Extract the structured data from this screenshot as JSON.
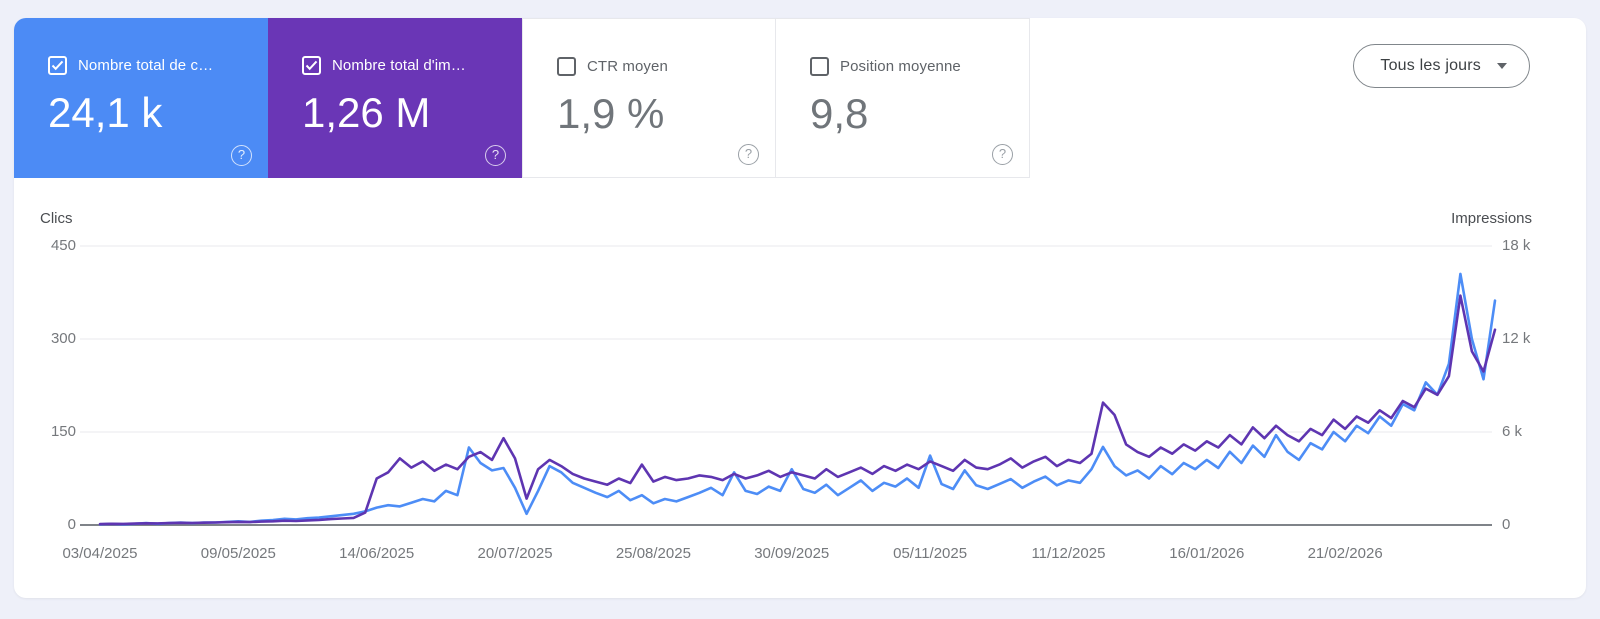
{
  "metrics": {
    "help_glyph": "?",
    "cards": [
      {
        "label": "Nombre total de c…",
        "value": "24,1 k",
        "checked": true
      },
      {
        "label": "Nombre total d'im…",
        "value": "1,26 M",
        "checked": true
      },
      {
        "label": "CTR moyen",
        "value": "1,9 %",
        "checked": false
      },
      {
        "label": "Position moyenne",
        "value": "9,8",
        "checked": false
      }
    ]
  },
  "date_filter": {
    "label": "Tous les jours"
  },
  "colors": {
    "clicks_card": "#4c8bf5",
    "impressions_card": "#6a36b6",
    "clicks_line": "#4d8df6",
    "impressions_line": "#5e35b1",
    "page_background": "#eef0f9",
    "grid_line": "#e8eaec",
    "zero_axis": "#7f8389",
    "tick_text": "#75787c"
  },
  "chart_data": {
    "type": "line",
    "title": "",
    "grid": "horizontal",
    "point_spacing_days": 3,
    "left_axis": {
      "label": "Clics",
      "range": [
        0,
        450
      ],
      "ticks": [
        "0",
        "150",
        "300",
        "450"
      ]
    },
    "right_axis": {
      "label": "Impressions",
      "range": [
        0,
        18000
      ],
      "ticks": [
        "0",
        "6 k",
        "12 k",
        "18 k"
      ]
    },
    "x_tick_labels": [
      "03/04/2025",
      "09/05/2025",
      "14/06/2025",
      "20/07/2025",
      "25/08/2025",
      "30/09/2025",
      "05/11/2025",
      "11/12/2025",
      "16/01/2026",
      "21/02/2026"
    ],
    "series": [
      {
        "name": "Clics",
        "axis": "left",
        "color": "#4d8df6",
        "values": [
          1,
          2,
          1,
          2,
          3,
          2,
          3,
          4,
          3,
          4,
          4,
          5,
          6,
          5,
          7,
          8,
          10,
          9,
          11,
          12,
          14,
          16,
          18,
          22,
          28,
          32,
          30,
          36,
          42,
          38,
          55,
          48,
          125,
          100,
          88,
          92,
          60,
          18,
          55,
          95,
          85,
          68,
          60,
          52,
          45,
          55,
          40,
          48,
          35,
          42,
          38,
          45,
          52,
          60,
          48,
          85,
          55,
          50,
          62,
          55,
          90,
          58,
          52,
          65,
          48,
          60,
          72,
          55,
          68,
          62,
          75,
          60,
          112,
          66,
          58,
          88,
          64,
          58,
          66,
          74,
          60,
          70,
          78,
          64,
          72,
          68,
          90,
          126,
          95,
          80,
          88,
          75,
          95,
          82,
          100,
          90,
          105,
          92,
          118,
          100,
          128,
          110,
          145,
          118,
          105,
          132,
          122,
          150,
          135,
          160,
          148,
          175,
          160,
          195,
          185,
          230,
          210,
          260,
          405,
          300,
          235,
          362
        ]
      },
      {
        "name": "Impressions",
        "axis": "right",
        "color": "#5e35b1",
        "values": [
          60,
          80,
          70,
          90,
          110,
          100,
          120,
          140,
          130,
          150,
          160,
          180,
          200,
          190,
          220,
          240,
          280,
          260,
          300,
          330,
          380,
          420,
          460,
          800,
          3000,
          3400,
          4300,
          3700,
          4100,
          3500,
          3900,
          3600,
          4400,
          4700,
          4200,
          5600,
          4300,
          1700,
          3600,
          4200,
          3800,
          3300,
          3000,
          2800,
          2600,
          3000,
          2700,
          3900,
          2800,
          3100,
          2900,
          3000,
          3200,
          3100,
          2900,
          3300,
          3000,
          3200,
          3500,
          3100,
          3400,
          3200,
          3000,
          3600,
          3100,
          3400,
          3700,
          3300,
          3800,
          3500,
          3900,
          3600,
          4100,
          3800,
          3500,
          4200,
          3700,
          3600,
          3900,
          4300,
          3700,
          4100,
          4400,
          3800,
          4200,
          4000,
          4600,
          7900,
          7100,
          5200,
          4700,
          4400,
          5000,
          4600,
          5200,
          4800,
          5400,
          5000,
          5800,
          5200,
          6300,
          5600,
          6400,
          5800,
          5400,
          6200,
          5800,
          6800,
          6200,
          7000,
          6600,
          7400,
          6900,
          8000,
          7600,
          8800,
          8400,
          9600,
          14800,
          11200,
          9900,
          12600
        ]
      }
    ]
  }
}
